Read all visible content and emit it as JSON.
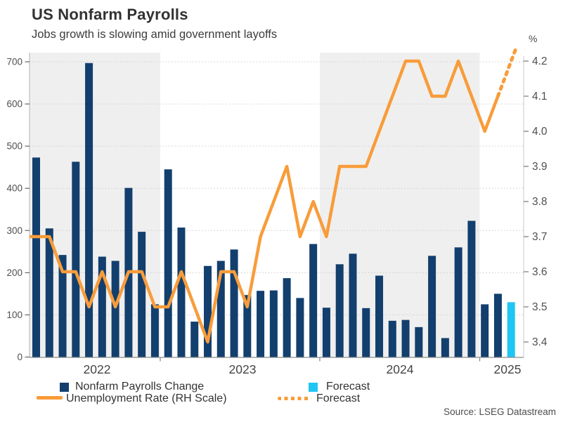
{
  "page": {
    "title": "US Nonfarm Payrolls",
    "subtitle": "Jobs growth is slowing amid government layoffs",
    "source": "Source: LSEG Datastream"
  },
  "legend": {
    "items": [
      {
        "label": "Nonfarm Payrolls Change",
        "swatch": "square",
        "color": "#123f6d"
      },
      {
        "label": "Unemployment Rate (RH Scale)",
        "swatch": "line",
        "color": "#f89c3a"
      },
      {
        "label": "Forecast",
        "swatch": "square",
        "color": "#1fc5f3"
      },
      {
        "label": "Forecast",
        "swatch": "dotted-line",
        "color": "#f89c3a"
      }
    ]
  },
  "chart_data": {
    "type": "combo-bar-line",
    "title": "US Nonfarm Payrolls",
    "subtitle": "Jobs growth is slowing amid government layoffs",
    "x_axis": {
      "year_labels": [
        "2022",
        "2023",
        "2024",
        "2025"
      ],
      "bars_per_year": [
        10,
        12,
        12,
        3
      ],
      "shaded_year_bands": [
        "2022",
        "2024"
      ]
    },
    "left_axis": {
      "ticks": [
        0,
        100,
        200,
        300,
        400,
        500,
        600,
        700
      ],
      "range": [
        0,
        700
      ]
    },
    "right_axis": {
      "unit_label": "%",
      "ticks": [
        "3.4",
        "3.5",
        "3.6",
        "3.7",
        "3.8",
        "3.9",
        "4.0",
        "4.1",
        "4.2"
      ],
      "range": [
        3.4,
        4.2
      ]
    },
    "grid": "horizontal-dotted",
    "legend_position": "bottom",
    "series": [
      {
        "name": "Nonfarm Payrolls Change",
        "type": "bar",
        "axis": "left",
        "color": "#123f6d",
        "values": [
          473,
          305,
          242,
          463,
          697,
          238,
          228,
          401,
          297,
          125,
          445,
          307,
          84,
          216,
          228,
          255,
          147,
          157,
          158,
          187,
          140,
          268,
          117,
          220,
          245,
          116,
          193,
          86,
          88,
          71,
          240,
          45,
          260,
          323,
          125,
          150
        ]
      },
      {
        "name": "Forecast",
        "type": "bar",
        "axis": "left",
        "color": "#1fc5f3",
        "values": [
          130
        ]
      },
      {
        "name": "Unemployment Rate (RH Scale)",
        "type": "line",
        "axis": "right",
        "color": "#f89c3a",
        "values": [
          3.7,
          3.7,
          3.6,
          3.6,
          3.5,
          3.6,
          3.5,
          3.6,
          3.6,
          3.5,
          3.5,
          3.6,
          3.5,
          3.4,
          3.6,
          3.6,
          3.5,
          3.7,
          3.8,
          3.9,
          3.7,
          3.8,
          3.7,
          3.9,
          3.9,
          3.9,
          4.0,
          4.1,
          4.2,
          4.2,
          4.1,
          4.1,
          4.2,
          4.1,
          4.0,
          4.1
        ]
      },
      {
        "name": "Forecast",
        "type": "dotted-line",
        "axis": "right",
        "color": "#f89c3a",
        "values": [
          4.2
        ]
      }
    ]
  }
}
